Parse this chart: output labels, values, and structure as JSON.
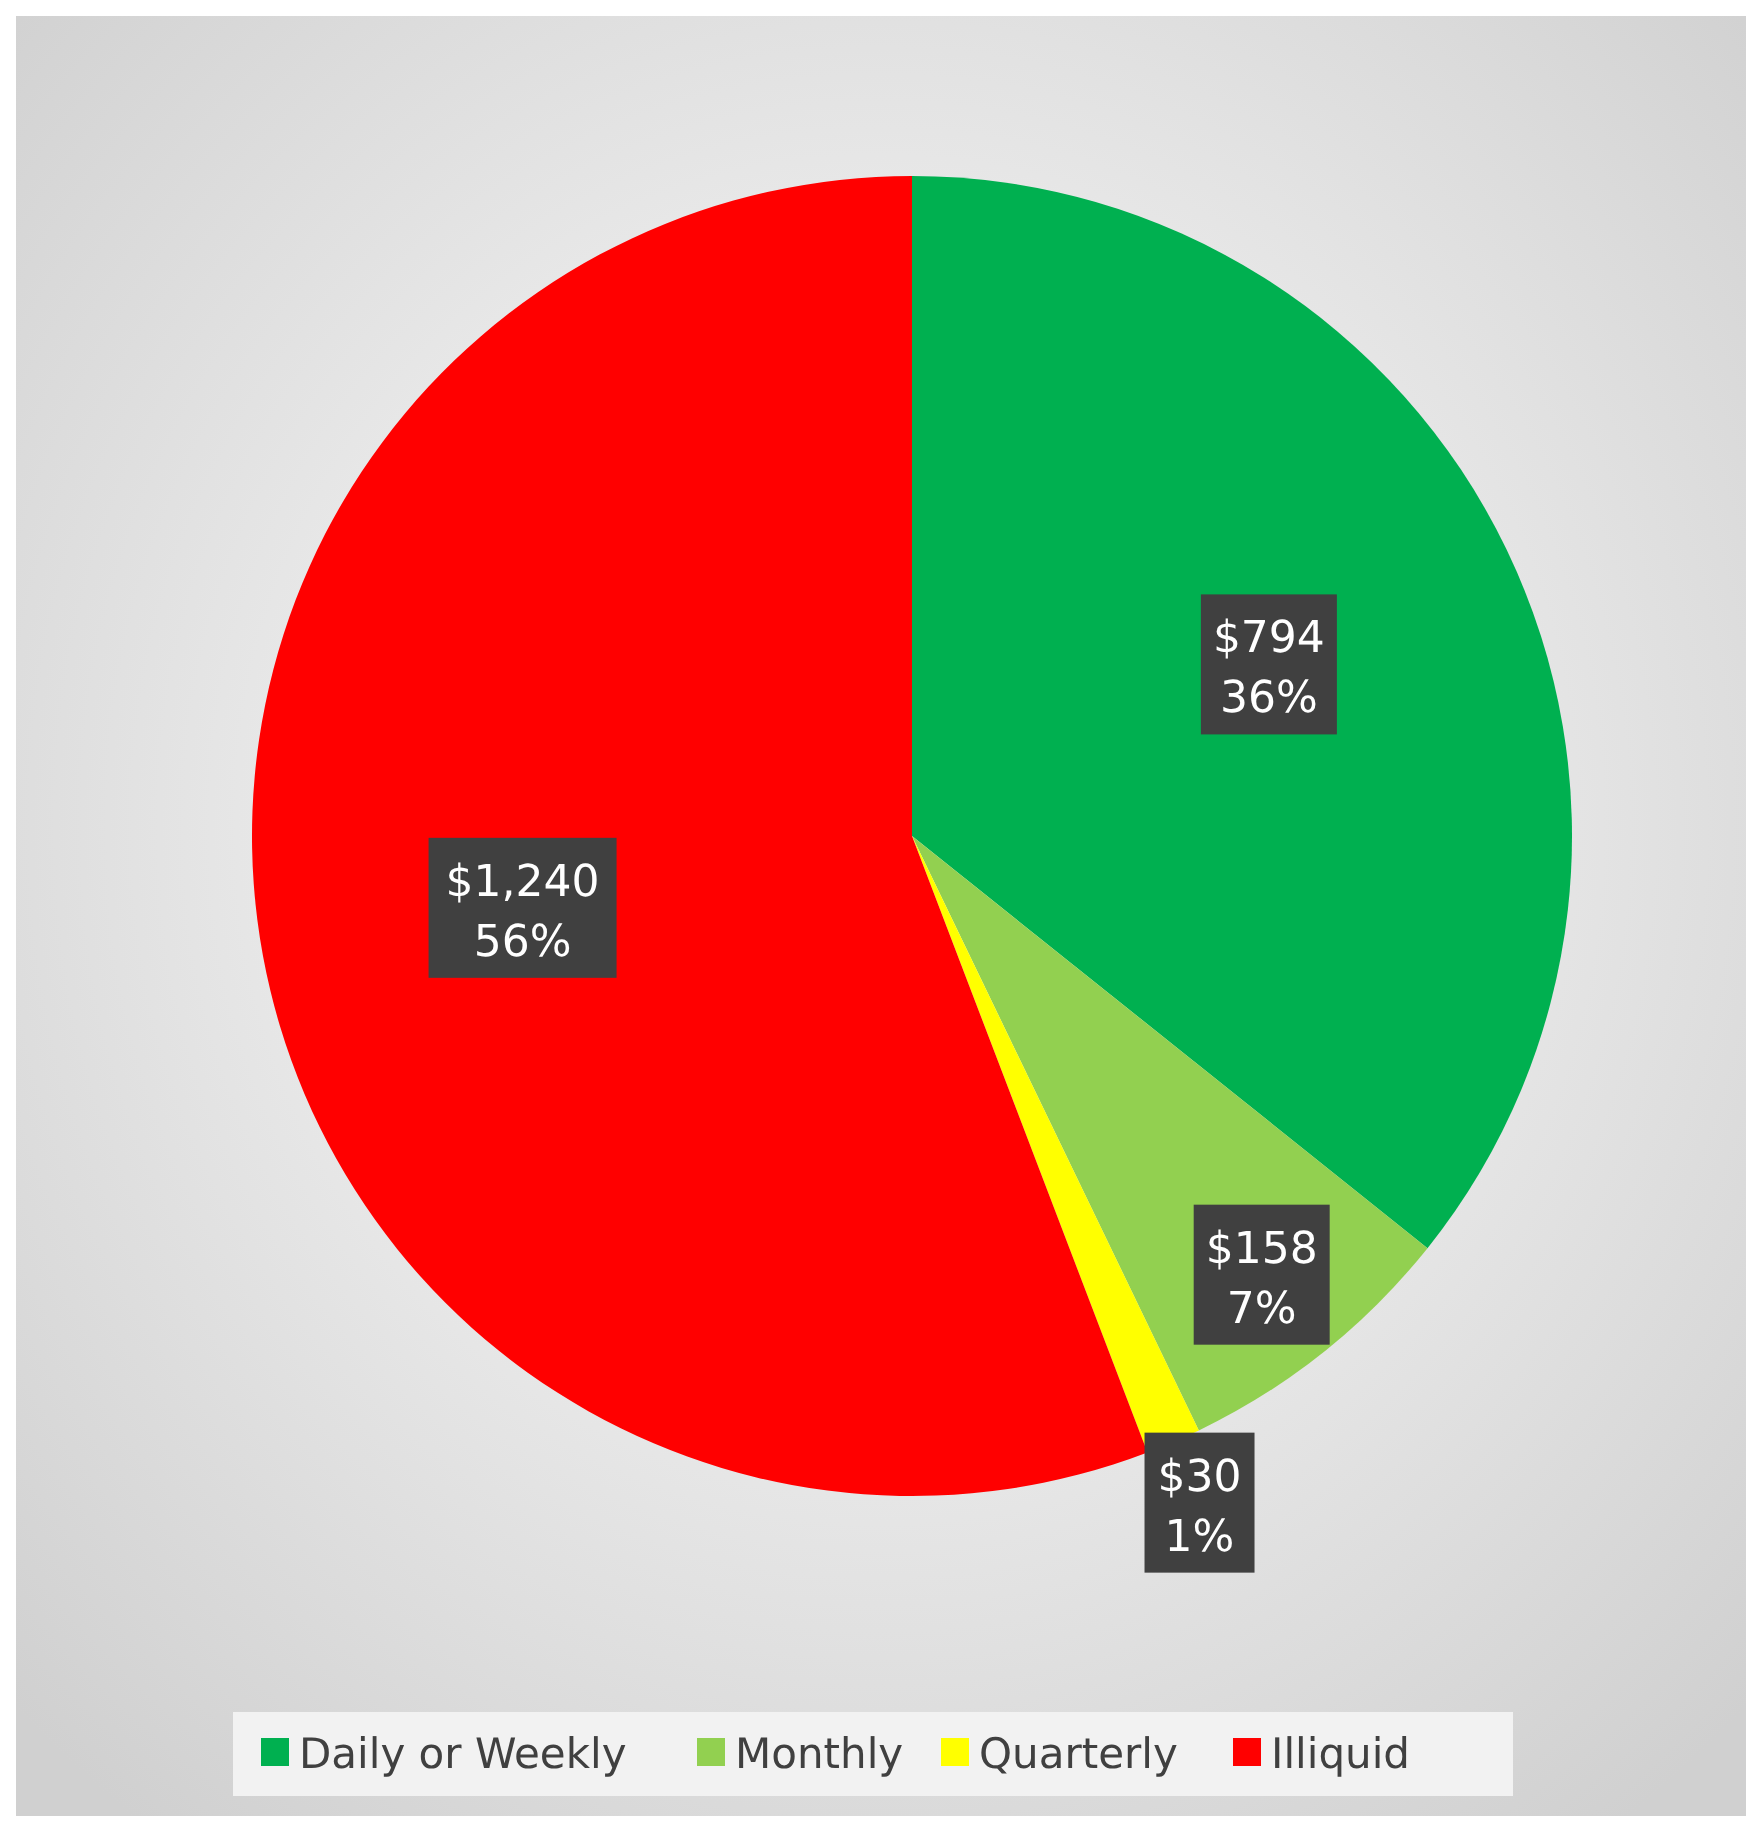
{
  "chart_data": {
    "type": "pie",
    "categories": [
      "Daily or Weekly",
      "Monthly",
      "Quarterly",
      "Illiquid"
    ],
    "values": [
      794,
      158,
      30,
      1240
    ],
    "colors": [
      "#00b050",
      "#92d050",
      "#ffff00",
      "#ff0000"
    ],
    "value_labels": [
      "$794\n36%",
      "$158\n7%",
      "$30\n1%",
      "$1,240\n56%"
    ],
    "legend": "bottom"
  }
}
